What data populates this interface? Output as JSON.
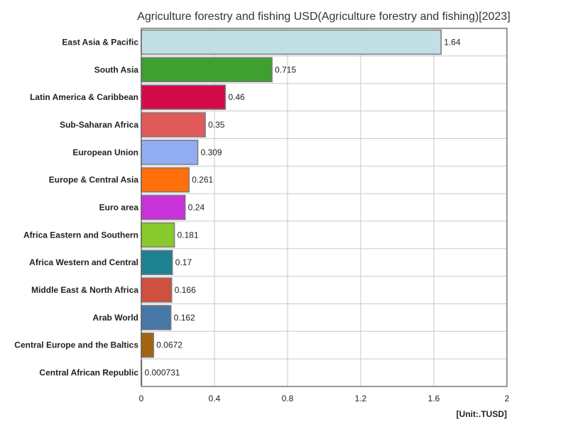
{
  "chart_data": {
    "type": "bar",
    "orientation": "horizontal",
    "title": "Agriculture forestry and fishing USD(Agriculture forestry and fishing)[2023]",
    "unit_label": "[Unit:.TUSD]",
    "categories": [
      "East Asia & Pacific",
      "South Asia",
      "Latin America & Caribbean",
      "Sub-Saharan Africa",
      "European Union",
      "Europe & Central Asia",
      "Euro area",
      "Africa Eastern and Southern",
      "Africa Western and Central",
      "Middle East & North Africa",
      "Arab World",
      "Central Europe and the Baltics",
      "Central African Republic"
    ],
    "values": [
      1.64,
      0.715,
      0.46,
      0.35,
      0.309,
      0.261,
      0.24,
      0.181,
      0.17,
      0.166,
      0.162,
      0.0672,
      0.000731
    ],
    "value_labels": [
      "1.64",
      "0.715",
      "0.46",
      "0.35",
      "0.309",
      "0.261",
      "0.24",
      "0.181",
      "0.17",
      "0.166",
      "0.162",
      "0.0672",
      "0.000731"
    ],
    "colors": [
      "#c2dfe5",
      "#3f9f30",
      "#d50b49",
      "#e05a5a",
      "#93adf2",
      "#ff700d",
      "#c832d8",
      "#88c92c",
      "#1e8190",
      "#d05040",
      "#4878a6",
      "#a4650f",
      "#aaaaaa"
    ],
    "xlim": [
      0,
      2
    ],
    "x_ticks": [
      0,
      0.4,
      0.8,
      1.2,
      1.6,
      2
    ],
    "x_tick_labels": [
      "0",
      "0.4",
      "0.8",
      "1.2",
      "1.6",
      "2"
    ],
    "grid": true,
    "legend": "none"
  }
}
